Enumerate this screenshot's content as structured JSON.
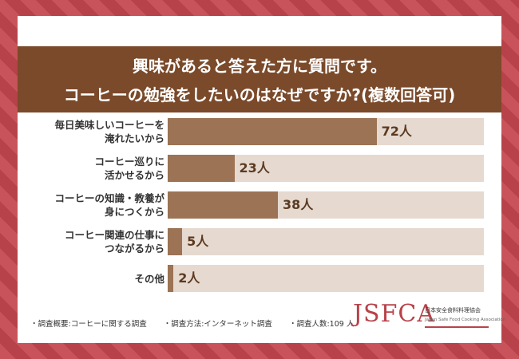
{
  "header": {
    "title_line1": "興味があると答えた方に質問です。",
    "title_line2": "コーヒーの勉強をしたいのはなぜですか?(複数回答可)"
  },
  "chart_data": {
    "type": "bar",
    "orientation": "horizontal",
    "title": "興味があると答えた方に質問です。コーヒーの勉強をしたいのはなぜですか?(複数回答可)",
    "unit": "人",
    "max": 109,
    "categories": [
      "毎日美味しいコーヒーを\n淹れたいから",
      "コーヒー巡りに\n活かせるから",
      "コーヒーの知識・教養が\n身につくから",
      "コーヒー関連の仕事に\nつながるから",
      "その他"
    ],
    "values": [
      72,
      23,
      38,
      5,
      2
    ],
    "value_labels": [
      "72人",
      "23人",
      "38人",
      "5人",
      "2人"
    ]
  },
  "footer": {
    "item1": "・調査概要:コーヒーに関する調査",
    "item2": "・調査方法:インターネット調査",
    "item3": "・調査人数:109 人"
  },
  "logo": {
    "mark": "JSFCA",
    "name_jp": "日本安全食料料理協会",
    "name_en": "Japan Safe Food Cooking Association"
  },
  "colors": {
    "header": "#7a4a2a",
    "bar": "#9c7354",
    "bar_background": "#e6d9cf",
    "value_text": "#5b3a22",
    "accent": "#b8424a"
  }
}
